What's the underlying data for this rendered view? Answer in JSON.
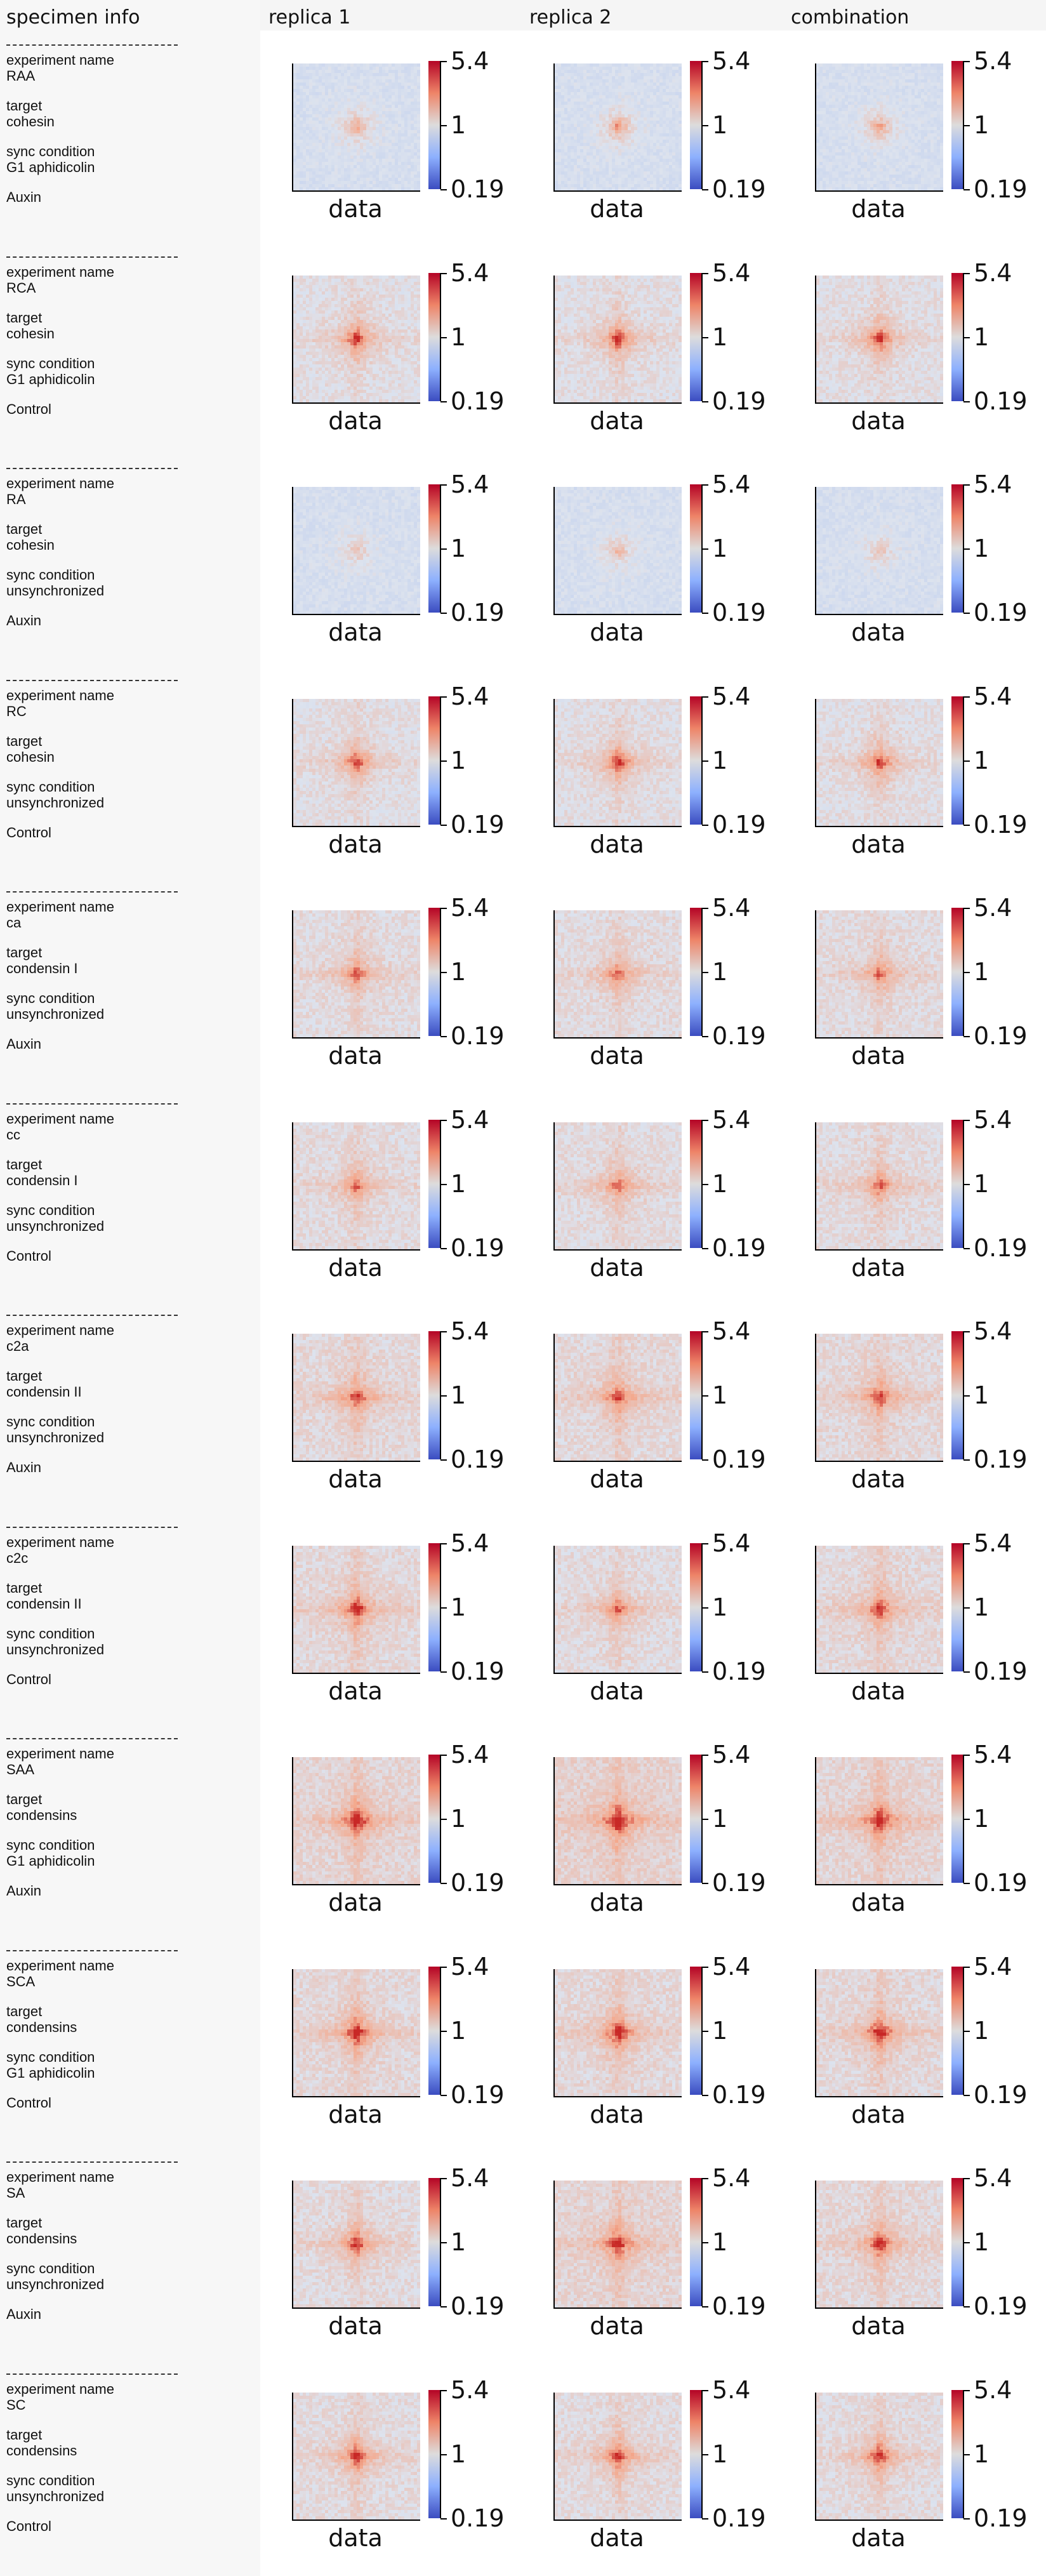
{
  "headers": {
    "specimen": "specimen info",
    "replica1": "replica 1",
    "replica2": "replica 2",
    "combination": "combination"
  },
  "field_labels": {
    "experiment": "experiment name",
    "target": "target",
    "sync": "sync condition"
  },
  "panel_labels": {
    "xlabel": "data"
  },
  "colorbar": {
    "max": "5.4",
    "mid": "1",
    "min": "0.19",
    "low_color": "#3b4cc0",
    "mid_color": "#dddcdc",
    "high_color": "#b40426"
  },
  "specimens": [
    {
      "experiment": "RAA",
      "target": "cohesin",
      "sync": "G1 aphidicolin",
      "treatment": "Auxin"
    },
    {
      "experiment": "RCA",
      "target": "cohesin",
      "sync": "G1 aphidicolin",
      "treatment": "Control"
    },
    {
      "experiment": "RA",
      "target": "cohesin",
      "sync": "unsynchronized",
      "treatment": "Auxin"
    },
    {
      "experiment": "RC",
      "target": "cohesin",
      "sync": "unsynchronized",
      "treatment": "Control"
    },
    {
      "experiment": "ca",
      "target": "condensin I",
      "sync": "unsynchronized",
      "treatment": "Auxin"
    },
    {
      "experiment": "cc",
      "target": "condensin I",
      "sync": "unsynchronized",
      "treatment": "Control"
    },
    {
      "experiment": "c2a",
      "target": "condensin II",
      "sync": "unsynchronized",
      "treatment": "Auxin"
    },
    {
      "experiment": "c2c",
      "target": "condensin II",
      "sync": "unsynchronized",
      "treatment": "Control"
    },
    {
      "experiment": "SAA",
      "target": "condensins",
      "sync": "G1 aphidicolin",
      "treatment": "Auxin"
    },
    {
      "experiment": "SCA",
      "target": "condensins",
      "sync": "G1 aphidicolin",
      "treatment": "Control"
    },
    {
      "experiment": "SA",
      "target": "condensins",
      "sync": "unsynchronized",
      "treatment": "Auxin"
    },
    {
      "experiment": "SC",
      "target": "condensins",
      "sync": "unsynchronized",
      "treatment": "Control"
    }
  ]
}
